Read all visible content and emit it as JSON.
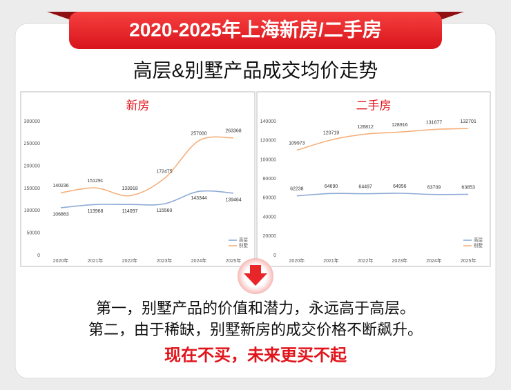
{
  "header": {
    "title": "2020-2025年上海新房/二手房",
    "subtitle": "高层&别墅产品成交均价走势"
  },
  "chart_data": [
    {
      "type": "line",
      "title": "新房",
      "categories": [
        "2020年",
        "2021年",
        "2022年",
        "2023年",
        "2024年",
        "2025年"
      ],
      "series": [
        {
          "name": "高层",
          "color": "#8eaad6",
          "values": [
            106863,
            113968,
            114097,
            115560,
            143344,
            139464
          ]
        },
        {
          "name": "别墅",
          "color": "#f5b07c",
          "values": [
            140236,
            151291,
            133918,
            172475,
            257000,
            263368
          ]
        }
      ],
      "ylim": [
        0,
        300000
      ],
      "yticks": [
        0,
        50000,
        100000,
        150000,
        200000,
        250000,
        300000
      ],
      "grid": false,
      "legend": "lower right"
    },
    {
      "type": "line",
      "title": "二手房",
      "categories": [
        "2020年",
        "2021年",
        "2022年",
        "2023年",
        "2024年",
        "2025年"
      ],
      "series": [
        {
          "name": "高层",
          "color": "#8eaad6",
          "values": [
            62238,
            64690,
            64497,
            64956,
            63709,
            63853
          ]
        },
        {
          "name": "别墅",
          "color": "#f5b07c",
          "values": [
            109973,
            120719,
            126812,
            128916,
            131677,
            132701
          ]
        }
      ],
      "ylim": [
        0,
        140000
      ],
      "yticks": [
        0,
        20000,
        40000,
        60000,
        80000,
        100000,
        120000,
        140000
      ],
      "grid": false,
      "legend": "lower right"
    }
  ],
  "conclusion": {
    "line1": "第一，别墅产品的价值和潜力，永远高于高层。",
    "line2": "第二，由于稀缺，别墅新房的成交价格不断飙升。",
    "highlight": "现在不买，未来更买不起"
  }
}
